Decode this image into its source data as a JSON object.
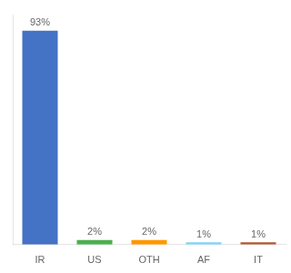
{
  "chart_data": {
    "type": "bar",
    "categories": [
      "IR",
      "US",
      "OTH",
      "AF",
      "IT"
    ],
    "values": [
      93,
      2,
      2,
      1,
      1
    ],
    "value_labels": [
      "93%",
      "2%",
      "2%",
      "1%",
      "1%"
    ],
    "data_labels": true,
    "colors": [
      "#4472c4",
      "#4caf50",
      "#ff9800",
      "#81d4fa",
      "#b05a2f"
    ],
    "ylim": [
      0,
      100
    ],
    "tick_labels": "x",
    "grid": false
  }
}
